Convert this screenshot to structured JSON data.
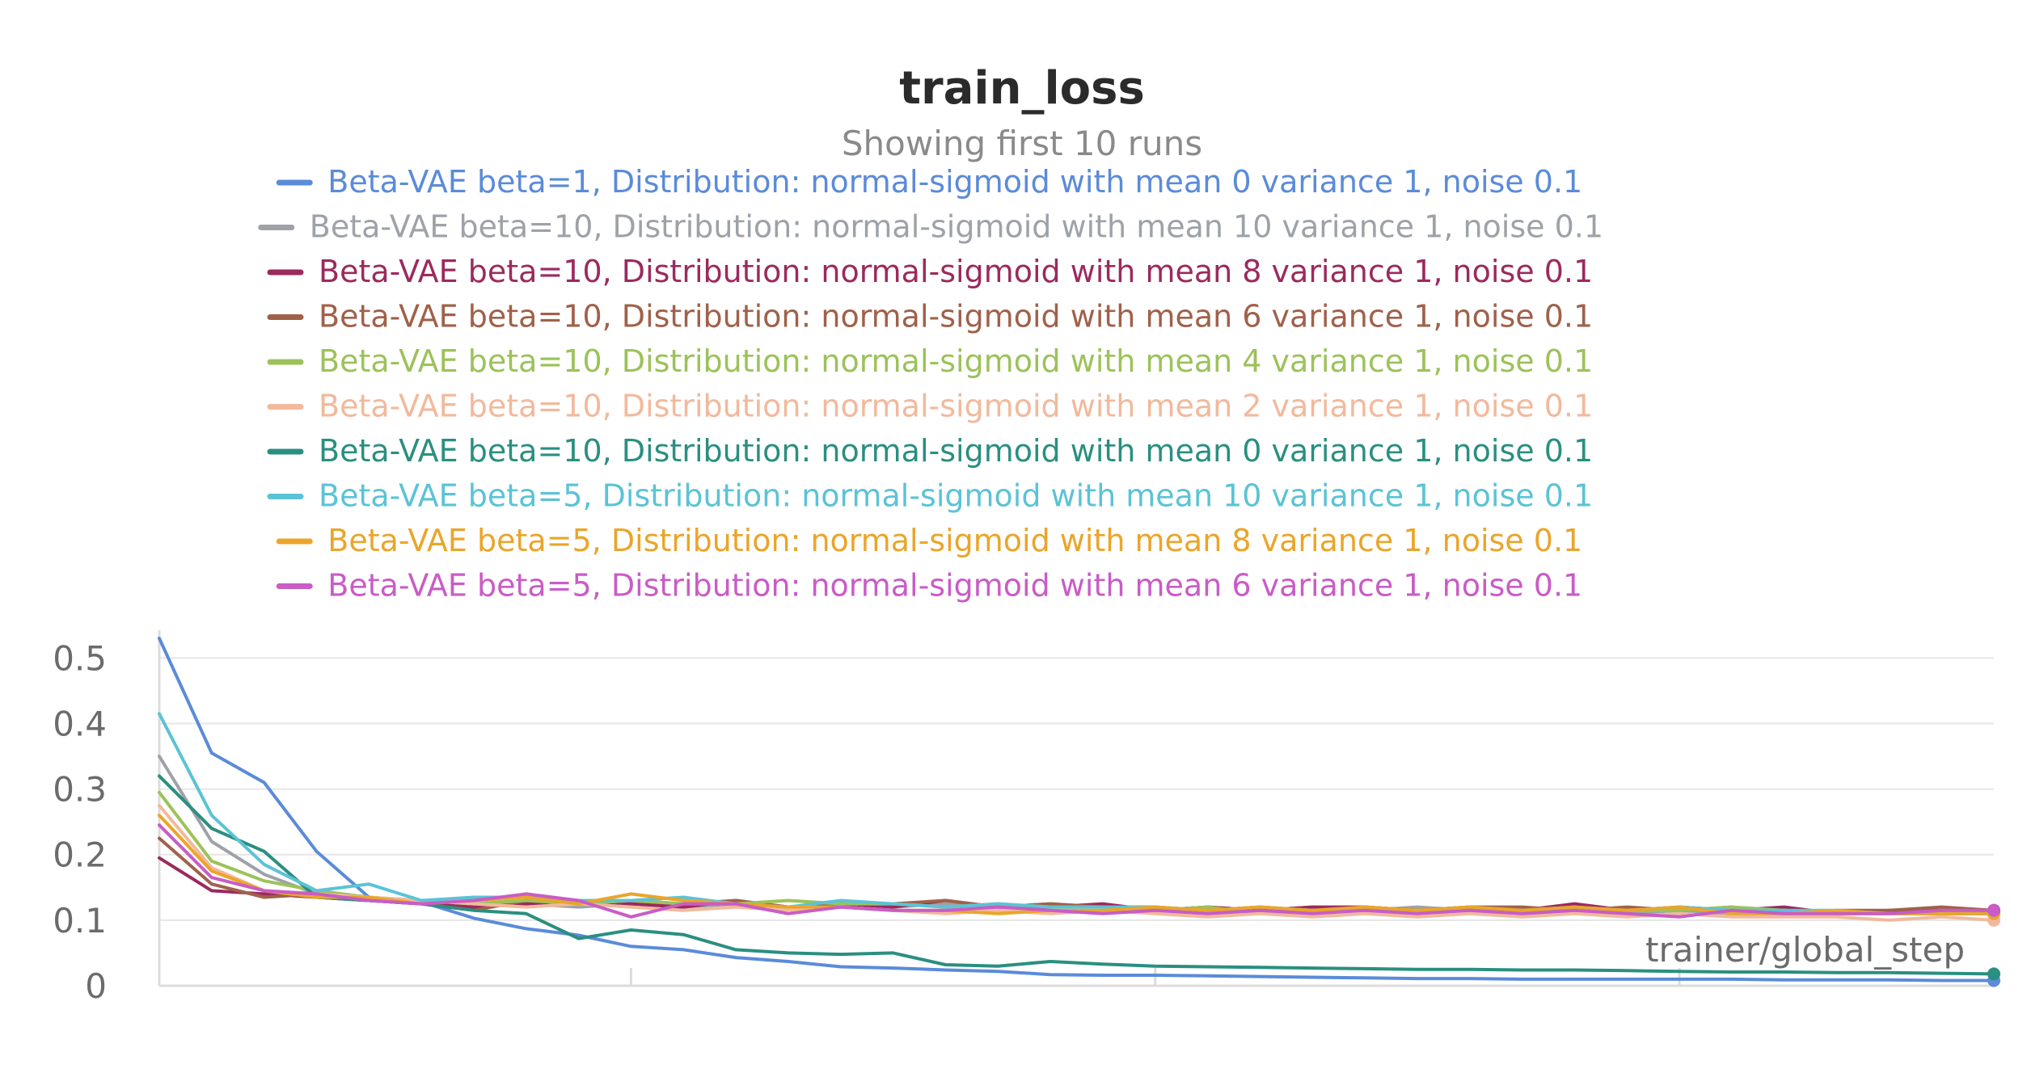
{
  "chart_data": {
    "type": "line",
    "title": "train_loss",
    "subtitle": "Showing first 10 runs",
    "xlabel": "trainer/global_step",
    "ylabel": "",
    "ylim": [
      0,
      0.53
    ],
    "yticks": [
      0,
      0.1,
      0.2,
      0.3,
      0.4,
      0.5
    ],
    "ytick_labels": [
      "0",
      "0.1",
      "0.2",
      "0.3",
      "0.4",
      "0.5"
    ],
    "xlim": [
      0,
      35
    ],
    "grid": true,
    "legend_position": "top-center",
    "series": [
      {
        "name": "Beta-VAE beta=1, Distribution: normal-sigmoid with mean 0 variance 1, noise 0.1",
        "color": "#5b8bd9",
        "values": [
          0.53,
          0.355,
          0.31,
          0.205,
          0.135,
          0.128,
          0.103,
          0.087,
          0.077,
          0.06,
          0.055,
          0.043,
          0.037,
          0.029,
          0.027,
          0.024,
          0.022,
          0.017,
          0.016,
          0.016,
          0.015,
          0.014,
          0.013,
          0.012,
          0.011,
          0.011,
          0.01,
          0.01,
          0.01,
          0.01,
          0.01,
          0.009,
          0.009,
          0.009,
          0.008,
          0.008
        ]
      },
      {
        "name": "Beta-VAE beta=10, Distribution: normal-sigmoid with mean 10 variance 1, noise 0.1",
        "color": "#9ea2a8",
        "values": [
          0.35,
          0.22,
          0.17,
          0.14,
          0.13,
          0.125,
          0.12,
          0.125,
          0.12,
          0.125,
          0.12,
          0.125,
          0.12,
          0.125,
          0.12,
          0.125,
          0.12,
          0.125,
          0.12,
          0.115,
          0.12,
          0.115,
          0.12,
          0.115,
          0.12,
          0.115,
          0.11,
          0.115,
          0.11,
          0.115,
          0.11,
          0.11,
          0.11,
          0.11,
          0.11,
          0.11
        ]
      },
      {
        "name": "Beta-VAE beta=10, Distribution: normal-sigmoid with mean 8 variance 1, noise 0.1",
        "color": "#9b2a5e",
        "values": [
          0.195,
          0.145,
          0.14,
          0.135,
          0.13,
          0.128,
          0.12,
          0.125,
          0.13,
          0.125,
          0.12,
          0.13,
          0.12,
          0.125,
          0.12,
          0.13,
          0.12,
          0.12,
          0.125,
          0.115,
          0.12,
          0.115,
          0.12,
          0.12,
          0.115,
          0.12,
          0.115,
          0.125,
          0.115,
          0.12,
          0.115,
          0.12,
          0.11,
          0.115,
          0.115,
          0.115
        ]
      },
      {
        "name": "Beta-VAE beta=10, Distribution: normal-sigmoid with mean 6 variance 1, noise 0.1",
        "color": "#a0614a",
        "values": [
          0.225,
          0.155,
          0.135,
          0.14,
          0.13,
          0.125,
          0.115,
          0.13,
          0.125,
          0.13,
          0.125,
          0.13,
          0.12,
          0.125,
          0.125,
          0.13,
          0.12,
          0.125,
          0.12,
          0.12,
          0.115,
          0.12,
          0.115,
          0.12,
          0.115,
          0.12,
          0.12,
          0.115,
          0.12,
          0.115,
          0.12,
          0.11,
          0.115,
          0.115,
          0.12,
          0.115
        ]
      },
      {
        "name": "Beta-VAE beta=10, Distribution: normal-sigmoid with mean 4 variance 1, noise 0.1",
        "color": "#9cc25a",
        "values": [
          0.295,
          0.19,
          0.16,
          0.145,
          0.135,
          0.13,
          0.125,
          0.13,
          0.125,
          0.13,
          0.125,
          0.125,
          0.13,
          0.125,
          0.125,
          0.12,
          0.125,
          0.12,
          0.12,
          0.115,
          0.12,
          0.11,
          0.115,
          0.115,
          0.115,
          0.115,
          0.11,
          0.115,
          0.115,
          0.115,
          0.12,
          0.115,
          0.11,
          0.11,
          0.11,
          0.11
        ]
      },
      {
        "name": "Beta-VAE beta=10, Distribution: normal-sigmoid with mean 2 variance 1, noise 0.1",
        "color": "#f2b99c",
        "values": [
          0.275,
          0.18,
          0.145,
          0.14,
          0.135,
          0.13,
          0.125,
          0.12,
          0.125,
          0.12,
          0.115,
          0.12,
          0.115,
          0.12,
          0.115,
          0.11,
          0.115,
          0.11,
          0.115,
          0.11,
          0.105,
          0.11,
          0.105,
          0.11,
          0.105,
          0.11,
          0.105,
          0.11,
          0.105,
          0.11,
          0.105,
          0.105,
          0.105,
          0.1,
          0.105,
          0.1
        ]
      },
      {
        "name": "Beta-VAE beta=10, Distribution: normal-sigmoid with mean 0 variance 1, noise 0.1",
        "color": "#2a8f80",
        "values": [
          0.32,
          0.24,
          0.205,
          0.135,
          0.13,
          0.125,
          0.115,
          0.11,
          0.072,
          0.085,
          0.078,
          0.055,
          0.05,
          0.048,
          0.05,
          0.032,
          0.03,
          0.037,
          0.033,
          0.03,
          0.029,
          0.028,
          0.027,
          0.026,
          0.025,
          0.025,
          0.024,
          0.024,
          0.023,
          0.022,
          0.021,
          0.021,
          0.02,
          0.02,
          0.019,
          0.018
        ]
      },
      {
        "name": "Beta-VAE beta=5, Distribution: normal-sigmoid with mean 10 variance 1, noise 0.1",
        "color": "#5bc3d6",
        "values": [
          0.415,
          0.26,
          0.185,
          0.145,
          0.155,
          0.13,
          0.135,
          0.135,
          0.13,
          0.13,
          0.135,
          0.125,
          0.12,
          0.13,
          0.125,
          0.12,
          0.125,
          0.12,
          0.12,
          0.12,
          0.115,
          0.12,
          0.115,
          0.115,
          0.115,
          0.12,
          0.115,
          0.12,
          0.115,
          0.12,
          0.115,
          0.115,
          0.115,
          0.11,
          0.11,
          0.11
        ]
      },
      {
        "name": "Beta-VAE beta=5, Distribution: normal-sigmoid with mean 8 variance 1, noise 0.1",
        "color": "#eaa52a",
        "values": [
          0.26,
          0.175,
          0.145,
          0.135,
          0.135,
          0.125,
          0.13,
          0.135,
          0.125,
          0.14,
          0.13,
          0.125,
          0.12,
          0.12,
          0.115,
          0.115,
          0.11,
          0.115,
          0.115,
          0.12,
          0.115,
          0.12,
          0.115,
          0.12,
          0.115,
          0.12,
          0.115,
          0.12,
          0.115,
          0.12,
          0.11,
          0.11,
          0.115,
          0.11,
          0.11,
          0.11
        ]
      },
      {
        "name": "Beta-VAE beta=5, Distribution: normal-sigmoid with mean 6 variance 1, noise 0.1",
        "color": "#c95cc6",
        "values": [
          0.245,
          0.165,
          0.145,
          0.14,
          0.13,
          0.125,
          0.13,
          0.14,
          0.13,
          0.105,
          0.125,
          0.125,
          0.11,
          0.12,
          0.115,
          0.115,
          0.12,
          0.115,
          0.11,
          0.115,
          0.11,
          0.115,
          0.11,
          0.115,
          0.11,
          0.115,
          0.11,
          0.115,
          0.11,
          0.105,
          0.115,
          0.11,
          0.11,
          0.11,
          0.115,
          0.115
        ]
      }
    ]
  }
}
